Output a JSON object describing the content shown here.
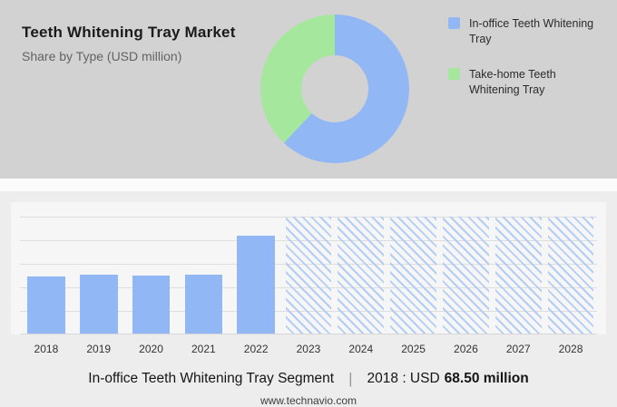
{
  "colors": {
    "blue": "#92b7f5",
    "green": "#a6e79e",
    "hatch": "#b4cdf4",
    "top_bg": "#d2d2d2",
    "bottom_bg": "#ededed"
  },
  "header": {
    "title": "Teeth Whitening Tray Market",
    "subtitle": "Share by Type (USD million)"
  },
  "legend": {
    "items": [
      {
        "label": "In-office Teeth Whitening Tray",
        "color": "#92b7f5"
      },
      {
        "label": "Take-home Teeth Whitening Tray",
        "color": "#a6e79e"
      }
    ]
  },
  "caption": {
    "segment": "In-office Teeth Whitening Tray Segment",
    "separator": "|",
    "prefix": "2018 : USD",
    "value": "68.50 million"
  },
  "footer": {
    "website": "www.technavio.com"
  },
  "chart_data": [
    {
      "type": "pie",
      "donut": true,
      "title": "Share by Type (USD million)",
      "labels": [
        "In-office Teeth Whitening Tray",
        "Take-home Teeth Whitening Tray"
      ],
      "values": [
        62,
        38
      ],
      "colors": [
        "#92b7f5",
        "#a6e79e"
      ],
      "legend_position": "right"
    },
    {
      "type": "bar",
      "categories": [
        "2018",
        "2019",
        "2020",
        "2021",
        "2022",
        "2023",
        "2024",
        "2025",
        "2026",
        "2027",
        "2028"
      ],
      "values": [
        68.5,
        70.5,
        69.5,
        70.5,
        117,
        null,
        null,
        null,
        null,
        null,
        null
      ],
      "ylim": [
        0,
        140
      ],
      "grid": true,
      "bar_color": "#92b7f5",
      "forecast_style": "hatched",
      "annotation": "2023-2028 are forecast years shown as full-height hatched columns; 2018 value labeled as USD 68.50 million"
    }
  ]
}
